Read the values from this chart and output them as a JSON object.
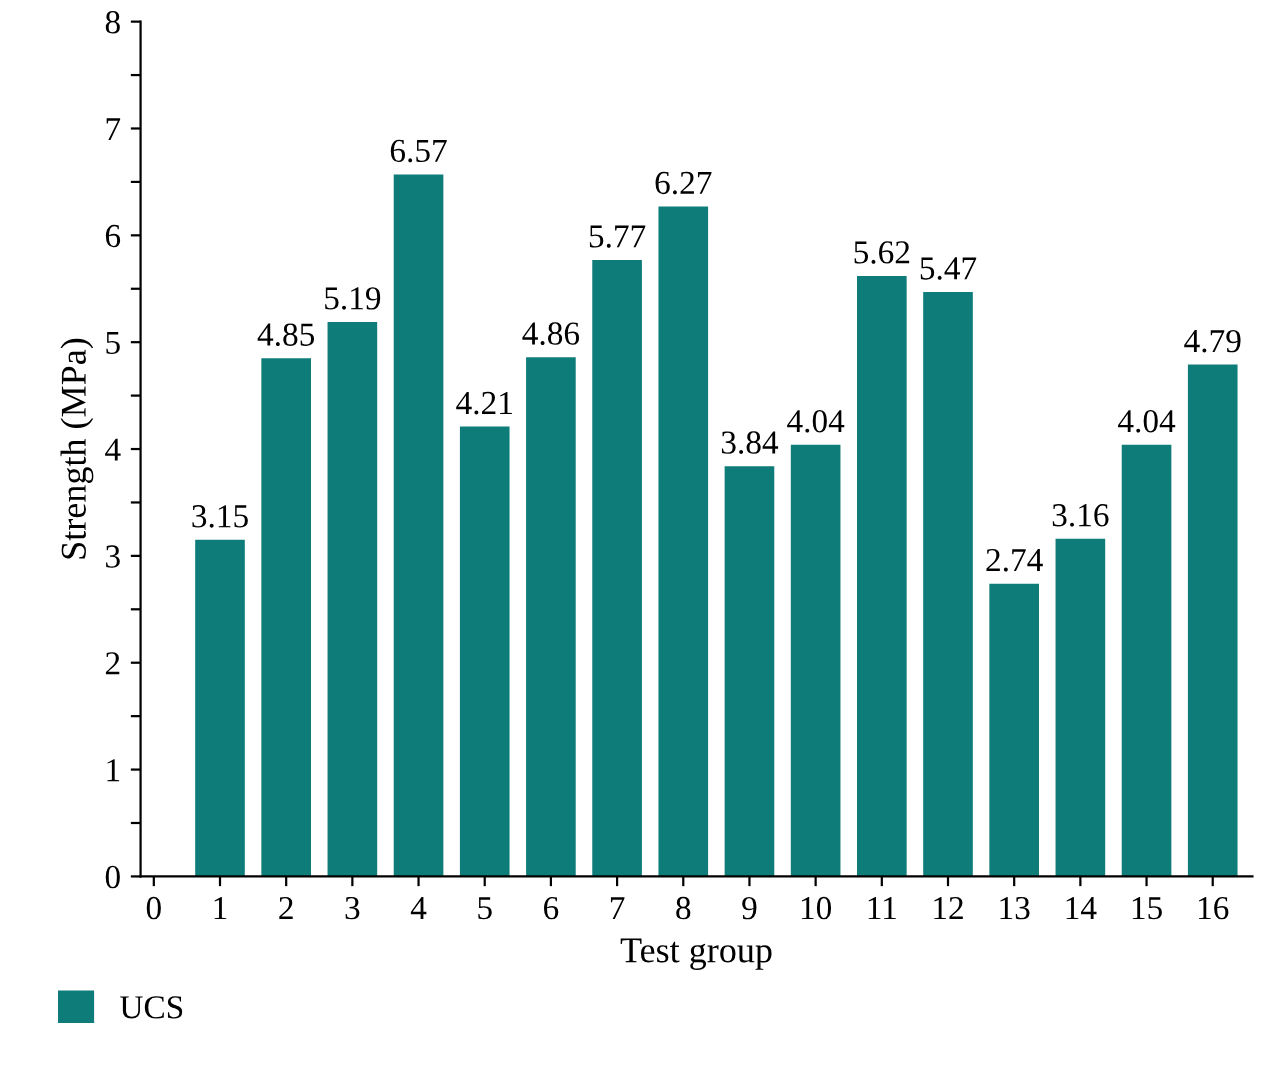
{
  "chart_data": {
    "type": "bar",
    "xlabel": "Test group",
    "ylabel": "Strength (MPa)",
    "x": [
      1,
      2,
      3,
      4,
      5,
      6,
      7,
      8,
      9,
      10,
      11,
      12,
      13,
      14,
      15,
      16
    ],
    "series": [
      {
        "name": "UCS",
        "color": "#0e7c78",
        "values": [
          3.15,
          4.85,
          5.19,
          6.57,
          4.21,
          4.86,
          5.77,
          6.27,
          3.84,
          4.04,
          5.62,
          5.47,
          2.74,
          3.16,
          4.04,
          4.79
        ]
      }
    ],
    "xlim": [
      -0.2,
      16.6
    ],
    "xticks": [
      0,
      1,
      2,
      3,
      4,
      5,
      6,
      7,
      8,
      9,
      10,
      11,
      12,
      13,
      14,
      15,
      16
    ],
    "ylim": [
      0,
      8
    ],
    "yticks": [
      0,
      {
        "value": 0.5,
        "label": null
      },
      1,
      {
        "value": 1.5,
        "label": null
      },
      2,
      {
        "value": 2.5,
        "label": null
      },
      3,
      {
        "value": 3.5,
        "label": null
      },
      4,
      {
        "value": 4.5,
        "label": null
      },
      5,
      {
        "value": 5.5,
        "label": null
      },
      6,
      {
        "value": 6.5,
        "label": null
      },
      7,
      {
        "value": 7.5,
        "label": null
      },
      8
    ],
    "data_labels": true,
    "legend": "bottom left",
    "grid": false
  }
}
